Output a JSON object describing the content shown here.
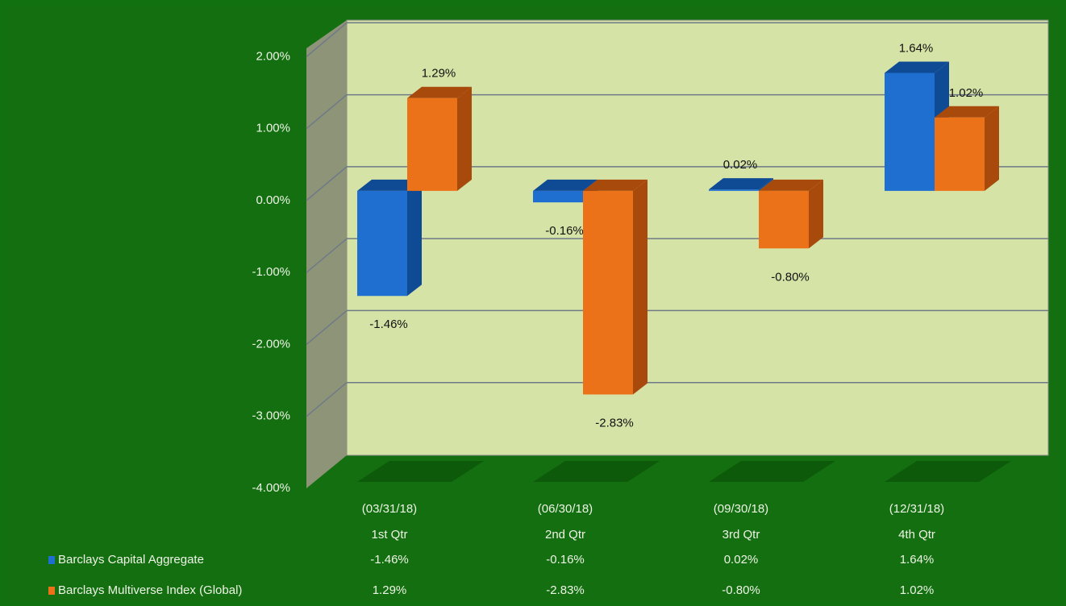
{
  "chart_data": {
    "type": "bar3d",
    "dates": [
      "(03/31/18)",
      "(06/30/18)",
      "(09/30/18)",
      "(12/31/18)"
    ],
    "categories": [
      "1st Qtr",
      "2nd Qtr",
      "3rd Qtr",
      "4th Qtr"
    ],
    "series": [
      {
        "name": "Barclays Capital Aggregate",
        "color": "#1f6fd1",
        "side": "#0f4a95",
        "values": [
          -1.46,
          -0.16,
          0.02,
          1.64
        ],
        "value_labels": [
          "-1.46%",
          "-0.16%",
          "0.02%",
          "1.64%"
        ]
      },
      {
        "name": "Barclays Multiverse Index (Global)",
        "color": "#ec7219",
        "side": "#a84a0c",
        "values": [
          1.29,
          -2.83,
          -0.8,
          1.02
        ],
        "value_labels": [
          "1.29%",
          "-2.83%",
          "-0.80%",
          "1.02%"
        ]
      }
    ],
    "ylim": [
      -4,
      2
    ],
    "yticks": [
      {
        "value": 2,
        "label": "2.00%"
      },
      {
        "value": 1,
        "label": "1.00%"
      },
      {
        "value": 0,
        "label": "0.00%"
      },
      {
        "value": -1,
        "label": "-1.00%"
      },
      {
        "value": -2,
        "label": "-2.00%"
      },
      {
        "value": -3,
        "label": "-3.00%"
      },
      {
        "value": -4,
        "label": "-4.00%"
      }
    ],
    "grid": true
  }
}
